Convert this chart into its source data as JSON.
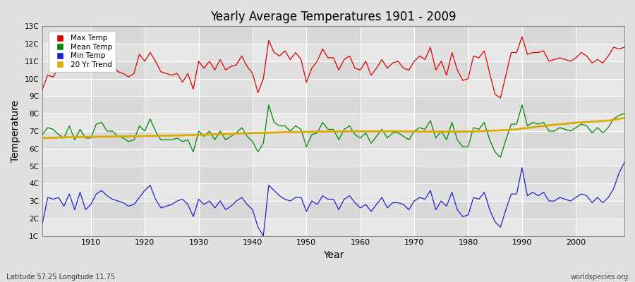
{
  "title": "Yearly Average Temperatures 1901 - 2009",
  "xlabel": "Year",
  "ylabel": "Temperature",
  "subtitle_left": "Latitude 57.25 Longitude 11.75",
  "subtitle_right": "worldspecies.org",
  "years": [
    1901,
    1902,
    1903,
    1904,
    1905,
    1906,
    1907,
    1908,
    1909,
    1910,
    1911,
    1912,
    1913,
    1914,
    1915,
    1916,
    1917,
    1918,
    1919,
    1920,
    1921,
    1922,
    1923,
    1924,
    1925,
    1926,
    1927,
    1928,
    1929,
    1930,
    1931,
    1932,
    1933,
    1934,
    1935,
    1936,
    1937,
    1938,
    1939,
    1940,
    1941,
    1942,
    1943,
    1944,
    1945,
    1946,
    1947,
    1948,
    1949,
    1950,
    1951,
    1952,
    1953,
    1954,
    1955,
    1956,
    1957,
    1958,
    1959,
    1960,
    1961,
    1962,
    1963,
    1964,
    1965,
    1966,
    1967,
    1968,
    1969,
    1970,
    1971,
    1972,
    1973,
    1974,
    1975,
    1976,
    1977,
    1978,
    1979,
    1980,
    1981,
    1982,
    1983,
    1984,
    1985,
    1986,
    1987,
    1988,
    1989,
    1990,
    1991,
    1992,
    1993,
    1994,
    1995,
    1996,
    1997,
    1998,
    1999,
    2000,
    2001,
    2002,
    2003,
    2004,
    2005,
    2006,
    2007,
    2008,
    2009
  ],
  "max_temp": [
    9.4,
    10.2,
    10.1,
    10.6,
    10.6,
    11.3,
    10.4,
    10.8,
    10.7,
    10.5,
    11.5,
    11.4,
    10.8,
    10.9,
    10.4,
    10.3,
    10.1,
    10.3,
    11.4,
    11.0,
    11.5,
    11.0,
    10.4,
    10.3,
    10.2,
    10.3,
    9.8,
    10.3,
    9.4,
    11.0,
    10.6,
    11.0,
    10.5,
    11.1,
    10.5,
    10.7,
    10.8,
    11.3,
    10.7,
    10.3,
    9.2,
    10.0,
    12.2,
    11.5,
    11.3,
    11.6,
    11.1,
    11.5,
    11.1,
    9.8,
    10.6,
    11.0,
    11.7,
    11.2,
    11.2,
    10.5,
    11.1,
    11.3,
    10.6,
    10.5,
    11.0,
    10.2,
    10.6,
    11.1,
    10.6,
    10.9,
    11.0,
    10.6,
    10.5,
    11.0,
    11.3,
    11.1,
    11.8,
    10.5,
    11.0,
    10.2,
    11.5,
    10.5,
    9.9,
    10.0,
    11.3,
    11.2,
    11.6,
    10.3,
    9.1,
    8.9,
    10.2,
    11.5,
    11.5,
    12.4,
    11.4,
    11.5,
    11.5,
    11.6,
    11.0,
    11.1,
    11.2,
    11.1,
    11.0,
    11.2,
    11.5,
    11.3,
    10.9,
    11.1,
    10.9,
    11.3,
    11.8,
    11.7,
    11.8
  ],
  "mean_temp": [
    6.8,
    7.2,
    7.1,
    6.8,
    6.6,
    7.3,
    6.5,
    7.1,
    6.6,
    6.6,
    7.4,
    7.5,
    7.0,
    7.0,
    6.7,
    6.6,
    6.4,
    6.5,
    7.3,
    7.0,
    7.7,
    7.0,
    6.5,
    6.5,
    6.5,
    6.6,
    6.4,
    6.5,
    5.8,
    7.0,
    6.7,
    7.0,
    6.5,
    7.0,
    6.5,
    6.7,
    6.9,
    7.2,
    6.7,
    6.4,
    5.8,
    6.3,
    8.5,
    7.5,
    7.3,
    7.3,
    7.0,
    7.3,
    7.1,
    6.1,
    6.8,
    6.9,
    7.5,
    7.1,
    7.1,
    6.5,
    7.1,
    7.3,
    6.8,
    6.6,
    6.9,
    6.3,
    6.7,
    7.1,
    6.6,
    6.9,
    6.9,
    6.7,
    6.5,
    7.0,
    7.2,
    7.1,
    7.6,
    6.6,
    7.0,
    6.5,
    7.5,
    6.5,
    6.1,
    6.1,
    7.2,
    7.1,
    7.5,
    6.5,
    5.8,
    5.5,
    6.5,
    7.4,
    7.4,
    8.5,
    7.3,
    7.5,
    7.4,
    7.5,
    7.0,
    7.0,
    7.2,
    7.1,
    7.0,
    7.2,
    7.4,
    7.3,
    6.9,
    7.2,
    6.9,
    7.2,
    7.7,
    7.9,
    8.0
  ],
  "min_temp": [
    1.7,
    3.2,
    3.1,
    3.2,
    2.7,
    3.4,
    2.5,
    3.5,
    2.5,
    2.8,
    3.4,
    3.6,
    3.3,
    3.1,
    3.0,
    2.9,
    2.7,
    2.8,
    3.2,
    3.6,
    3.9,
    3.1,
    2.6,
    2.7,
    2.8,
    3.0,
    3.1,
    2.8,
    2.1,
    3.1,
    2.8,
    3.0,
    2.6,
    3.0,
    2.5,
    2.7,
    3.0,
    3.2,
    2.8,
    2.5,
    1.5,
    1.0,
    3.9,
    3.6,
    3.3,
    3.1,
    3.0,
    3.2,
    3.2,
    2.4,
    3.0,
    2.8,
    3.3,
    3.1,
    3.1,
    2.5,
    3.1,
    3.3,
    2.9,
    2.6,
    2.8,
    2.4,
    2.8,
    3.2,
    2.6,
    2.9,
    2.9,
    2.8,
    2.5,
    3.0,
    3.2,
    3.1,
    3.6,
    2.5,
    3.0,
    2.7,
    3.5,
    2.5,
    2.1,
    2.2,
    3.2,
    3.1,
    3.5,
    2.5,
    1.8,
    1.5,
    2.5,
    3.4,
    3.4,
    4.9,
    3.3,
    3.5,
    3.3,
    3.5,
    3.0,
    3.0,
    3.2,
    3.1,
    3.0,
    3.2,
    3.4,
    3.3,
    2.9,
    3.2,
    2.9,
    3.2,
    3.7,
    4.6,
    5.2
  ],
  "trend_years": [
    1901,
    1902,
    1903,
    1904,
    1905,
    1906,
    1907,
    1908,
    1909,
    1910,
    1911,
    1912,
    1913,
    1914,
    1915,
    1916,
    1917,
    1918,
    1919,
    1920,
    1921,
    1922,
    1923,
    1924,
    1925,
    1926,
    1927,
    1928,
    1929,
    1930,
    1931,
    1932,
    1933,
    1934,
    1935,
    1936,
    1937,
    1938,
    1939,
    1940,
    1941,
    1942,
    1943,
    1944,
    1945,
    1946,
    1947,
    1948,
    1949,
    1950,
    1951,
    1952,
    1953,
    1954,
    1955,
    1956,
    1957,
    1958,
    1959,
    1960,
    1961,
    1962,
    1963,
    1964,
    1965,
    1966,
    1967,
    1968,
    1969,
    1970,
    1971,
    1972,
    1973,
    1974,
    1975,
    1976,
    1977,
    1978,
    1979,
    1980,
    1981,
    1982,
    1983,
    1984,
    1985,
    1986,
    1987,
    1988,
    1989,
    1990,
    1991,
    1992,
    1993,
    1994,
    1995,
    1996,
    1997,
    1998,
    1999,
    2000,
    2001,
    2002,
    2003,
    2004,
    2005,
    2006,
    2007,
    2008,
    2009
  ],
  "trend_vals": [
    6.6,
    6.61,
    6.62,
    6.63,
    6.64,
    6.65,
    6.65,
    6.66,
    6.66,
    6.67,
    6.67,
    6.68,
    6.68,
    6.69,
    6.69,
    6.7,
    6.7,
    6.71,
    6.71,
    6.72,
    6.73,
    6.73,
    6.74,
    6.74,
    6.75,
    6.75,
    6.76,
    6.77,
    6.77,
    6.78,
    6.79,
    6.8,
    6.81,
    6.82,
    6.83,
    6.84,
    6.86,
    6.87,
    6.88,
    6.89,
    6.9,
    6.9,
    6.91,
    6.92,
    6.93,
    6.94,
    6.94,
    6.95,
    6.95,
    6.96,
    6.96,
    6.97,
    6.97,
    6.98,
    6.98,
    6.98,
    6.98,
    6.99,
    6.99,
    6.99,
    6.99,
    6.99,
    6.99,
    6.99,
    6.99,
    6.99,
    6.99,
    6.98,
    6.98,
    6.98,
    6.98,
    6.97,
    6.97,
    6.97,
    6.97,
    6.97,
    6.97,
    6.97,
    6.97,
    6.97,
    6.98,
    6.99,
    7.01,
    7.02,
    7.03,
    7.04,
    7.06,
    7.08,
    7.1,
    7.15,
    7.18,
    7.22,
    7.26,
    7.3,
    7.33,
    7.36,
    7.39,
    7.42,
    7.45,
    7.48,
    7.5,
    7.52,
    7.54,
    7.56,
    7.58,
    7.6,
    7.65,
    7.7,
    7.75
  ],
  "color_max": "#dd0000",
  "color_mean": "#008800",
  "color_min": "#2222cc",
  "color_trend": "#ddaa00",
  "bg_color": "#e0e0e0",
  "plot_bg_light": "#e8e8e8",
  "plot_bg_dark": "#d8d8d8",
  "grid_color": "#ffffff",
  "ylim_min": 1,
  "ylim_max": 13,
  "yticks": [
    1,
    2,
    3,
    4,
    5,
    6,
    7,
    8,
    9,
    10,
    11,
    12,
    13
  ],
  "ytick_labels": [
    "1C",
    "2C",
    "3C",
    "4C",
    "5C",
    "6C",
    "7C",
    "8C",
    "9C",
    "10C",
    "11C",
    "12C",
    "13C"
  ],
  "xtick_positions": [
    1901,
    1910,
    1920,
    1930,
    1940,
    1950,
    1960,
    1970,
    1980,
    1990,
    2000,
    2009
  ],
  "xtick_labels": [
    "",
    "1910",
    "1920",
    "1930",
    "1940",
    "1950",
    "1960",
    "1970",
    "1980",
    "1990",
    "2000",
    ""
  ],
  "legend_entries": [
    "Max Temp",
    "Mean Temp",
    "Min Temp",
    "20 Yr Trend"
  ]
}
